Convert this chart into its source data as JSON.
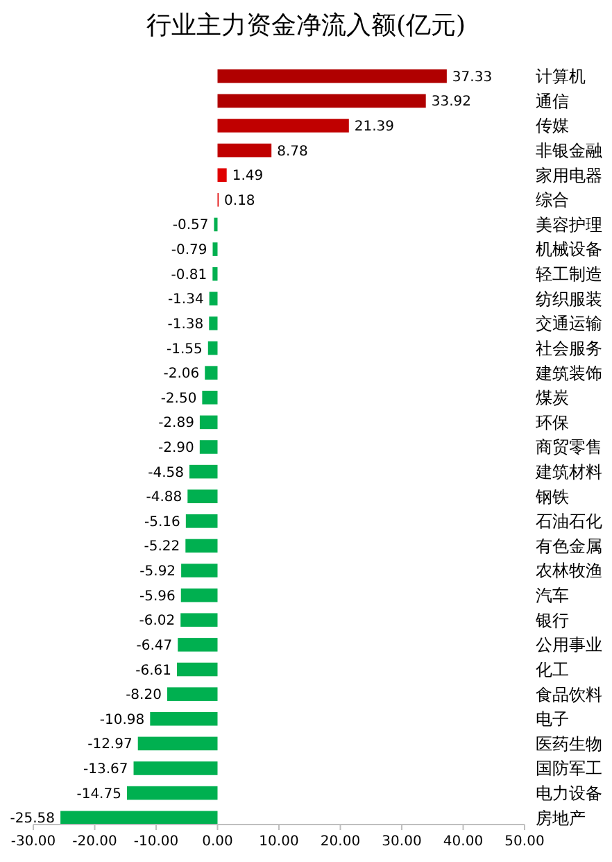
{
  "chart_data": {
    "type": "bar",
    "orientation": "horizontal",
    "title": "行业主力资金净流入额(亿元)",
    "categories": [
      "计算机",
      "通信",
      "传媒",
      "非银金融",
      "家用电器",
      "综合",
      "美容护理",
      "机械设备",
      "轻工制造",
      "纺织服装",
      "交通运输",
      "社会服务",
      "建筑装饰",
      "煤炭",
      "环保",
      "商贸零售",
      "建筑材料",
      "钢铁",
      "石油石化",
      "有色金属",
      "农林牧渔",
      "汽车",
      "银行",
      "公用事业",
      "化工",
      "食品饮料",
      "电子",
      "医药生物",
      "国防军工",
      "电力设备",
      "房地产"
    ],
    "values": [
      37.33,
      33.92,
      21.39,
      8.78,
      1.49,
      0.18,
      -0.57,
      -0.79,
      -0.81,
      -1.34,
      -1.38,
      -1.55,
      -2.06,
      -2.5,
      -2.89,
      -2.9,
      -4.58,
      -4.88,
      -5.16,
      -5.22,
      -5.92,
      -5.96,
      -6.02,
      -6.47,
      -6.61,
      -8.2,
      -10.98,
      -12.97,
      -13.67,
      -14.75,
      -25.58
    ],
    "colors": [
      "#b00000",
      "#b00000",
      "#c00000",
      "#c00000",
      "#e00000",
      "#e00000",
      "#00b050",
      "#00b050",
      "#00b050",
      "#00b050",
      "#00b050",
      "#00b050",
      "#00b050",
      "#00b050",
      "#00b050",
      "#00b050",
      "#00b050",
      "#00b050",
      "#00b050",
      "#00b050",
      "#00b050",
      "#00b050",
      "#00b050",
      "#00b050",
      "#00b050",
      "#00b050",
      "#00b050",
      "#00b050",
      "#00b050",
      "#00b050",
      "#00b050"
    ],
    "value_labels": [
      "37.33",
      "33.92",
      "21.39",
      "8.78",
      "1.49",
      "0.18",
      "-0.57",
      "-0.79",
      "-0.81",
      "-1.34",
      "-1.38",
      "-1.55",
      "-2.06",
      "-2.50",
      "-2.89",
      "-2.90",
      "-4.58",
      "-4.88",
      "-5.16",
      "-5.22",
      "-5.92",
      "-5.96",
      "-6.02",
      "-6.47",
      "-6.61",
      "-8.20",
      "-10.98",
      "-12.97",
      "-13.67",
      "-14.75",
      "-25.58"
    ],
    "xlim": [
      -30,
      50
    ],
    "xticks": [
      {
        "value": -30,
        "label": "-30.00"
      },
      {
        "value": -20,
        "label": "-20.00"
      },
      {
        "value": -10,
        "label": "-10.00"
      },
      {
        "value": 0,
        "label": "0.00"
      },
      {
        "value": 10,
        "label": "10.00"
      },
      {
        "value": 20,
        "label": "20.00"
      },
      {
        "value": 30,
        "label": "30.00"
      },
      {
        "value": 40,
        "label": "40.00"
      },
      {
        "value": 50,
        "label": "50.00"
      }
    ],
    "grid": false
  }
}
